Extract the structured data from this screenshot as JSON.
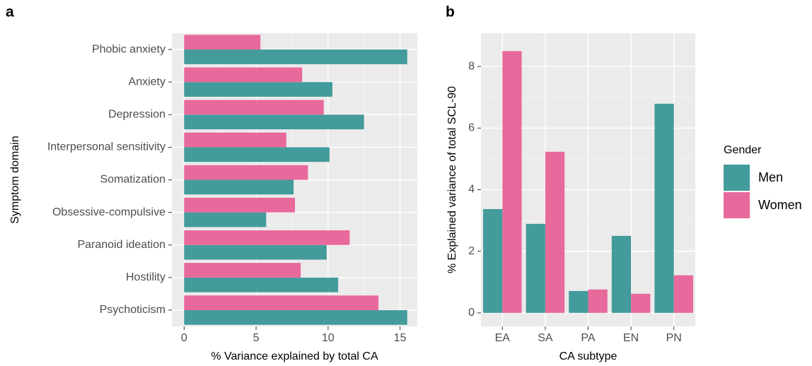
{
  "chart_data": [
    {
      "type": "bar",
      "orientation": "horizontal",
      "panel_label": "a",
      "x_label": "% Variance explained by total CA",
      "y_label": "Symptom domain",
      "categories": [
        "Phobic anxiety",
        "Anxiety",
        "Depression",
        "Interpersonal sensitivity",
        "Somatization",
        "Obsessive-compulsive",
        "Paranoid ideation",
        "Hostility",
        "Psychoticism"
      ],
      "series": [
        {
          "name": "Men",
          "color": "#439b9b",
          "values": [
            15.5,
            10.3,
            12.5,
            10.1,
            7.6,
            5.7,
            9.9,
            10.7,
            15.5
          ]
        },
        {
          "name": "Women",
          "color": "#e8699c",
          "values": [
            5.3,
            8.2,
            9.7,
            7.1,
            8.6,
            7.7,
            11.5,
            8.1,
            13.5
          ]
        }
      ],
      "xlim": [
        -0.85,
        16.2
      ],
      "xticks": [
        0,
        5,
        10,
        15
      ],
      "grid": true,
      "legend": false
    },
    {
      "type": "bar",
      "orientation": "vertical",
      "panel_label": "b",
      "x_label": "CA subtype",
      "y_label": "% Explained variance of total SCL-90",
      "categories": [
        "EA",
        "SA",
        "PA",
        "EN",
        "PN"
      ],
      "series": [
        {
          "name": "Men",
          "color": "#439b9b",
          "values": [
            3.37,
            2.89,
            0.71,
            2.5,
            6.79
          ]
        },
        {
          "name": "Women",
          "color": "#e8699c",
          "values": [
            8.5,
            5.23,
            0.76,
            0.62,
            1.22
          ]
        }
      ],
      "ylim": [
        -0.44,
        9.08
      ],
      "yticks": [
        0,
        2,
        4,
        6,
        8
      ],
      "grid": true,
      "legend": true,
      "legend_title": "Gender",
      "legend_position": "right"
    }
  ]
}
